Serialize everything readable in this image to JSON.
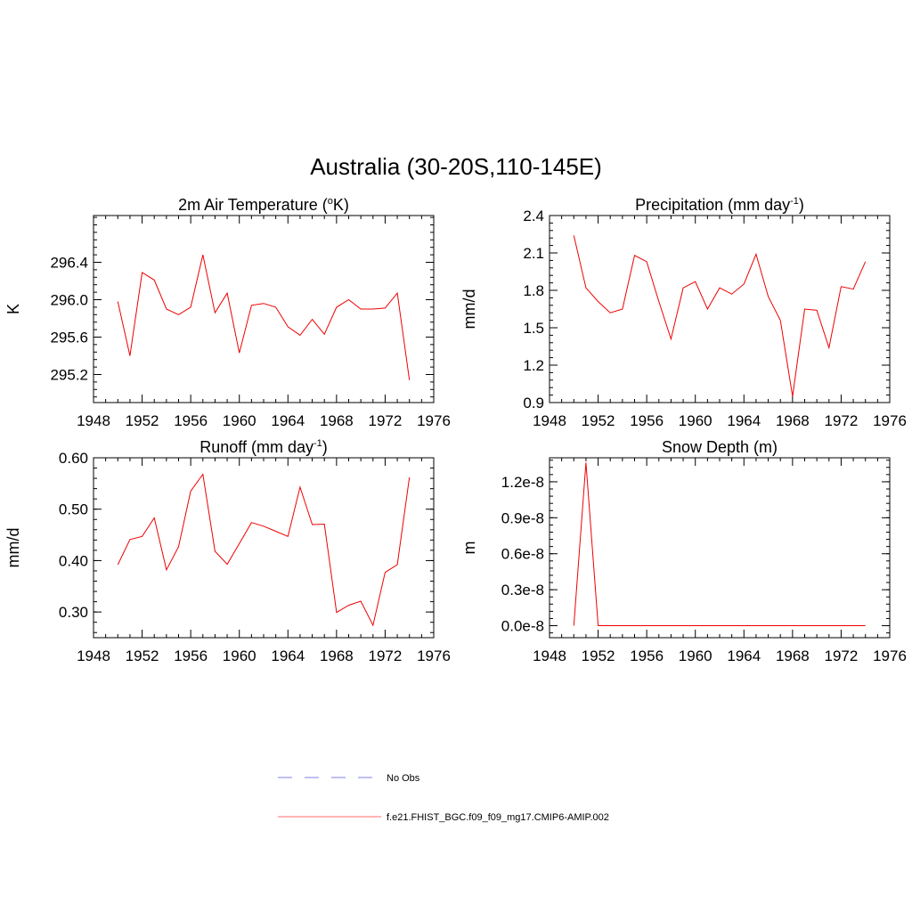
{
  "figure": {
    "title": "Australia (30-20S,110-145E)",
    "legend": [
      {
        "label": "No Obs",
        "color": "#9999ee",
        "dash": true
      },
      {
        "label": "f.e21.FHIST_BGC.f09_f09_mg17.CMIP6-AMIP.002",
        "color": "#ff8888",
        "dash": false
      }
    ]
  },
  "chart_data": [
    {
      "type": "line",
      "title_parts": [
        "2m Air Temperature (",
        "o",
        "K)"
      ],
      "title_style": "sup",
      "ylabel": "K",
      "xlim": [
        1948,
        1976
      ],
      "ylim": [
        294.9,
        296.9
      ],
      "xticks": [
        1948,
        1952,
        1956,
        1960,
        1964,
        1968,
        1972,
        1976
      ],
      "xtick_labels": [
        "1948",
        "1952",
        "1956",
        "1960",
        "1964",
        "1968",
        "1972",
        "1976"
      ],
      "yticks": [
        295.2,
        295.6,
        296.0,
        296.4
      ],
      "ytick_labels": [
        "295.2",
        "295.6",
        "296.0",
        "296.4"
      ],
      "x": [
        1950,
        1951,
        1952,
        1953,
        1954,
        1955,
        1956,
        1957,
        1958,
        1959,
        1960,
        1961,
        1962,
        1963,
        1964,
        1965,
        1966,
        1967,
        1968,
        1969,
        1970,
        1971,
        1972,
        1973,
        1974
      ],
      "series": [
        {
          "name": "f.e21.FHIST_BGC.f09_f09_mg17.CMIP6-AMIP.002",
          "color": "#ee0000",
          "values": [
            295.98,
            295.4,
            296.29,
            296.21,
            295.9,
            295.84,
            295.92,
            296.48,
            295.86,
            296.07,
            295.43,
            295.94,
            295.96,
            295.92,
            295.71,
            295.62,
            295.79,
            295.63,
            295.92,
            296.0,
            295.9,
            295.9,
            295.91,
            296.07,
            295.14
          ]
        }
      ]
    },
    {
      "type": "line",
      "title_parts": [
        "Precipitation (mm day",
        "-1",
        ")"
      ],
      "title_style": "sup",
      "ylabel": "mm/d",
      "xlim": [
        1948,
        1976
      ],
      "ylim": [
        0.9,
        2.4
      ],
      "xticks": [
        1948,
        1952,
        1956,
        1960,
        1964,
        1968,
        1972,
        1976
      ],
      "xtick_labels": [
        "1948",
        "1952",
        "1956",
        "1960",
        "1964",
        "1968",
        "1972",
        "1976"
      ],
      "yticks": [
        0.9,
        1.2,
        1.5,
        1.8,
        2.1,
        2.4
      ],
      "ytick_labels": [
        "0.9",
        "1.2",
        "1.5",
        "1.8",
        "2.1",
        "2.4"
      ],
      "x": [
        1950,
        1951,
        1952,
        1953,
        1954,
        1955,
        1956,
        1957,
        1958,
        1959,
        1960,
        1961,
        1962,
        1963,
        1964,
        1965,
        1966,
        1967,
        1968,
        1969,
        1970,
        1971,
        1972,
        1973,
        1974
      ],
      "series": [
        {
          "name": "f.e21.FHIST_BGC.f09_f09_mg17.CMIP6-AMIP.002",
          "color": "#ee0000",
          "values": [
            2.24,
            1.82,
            1.71,
            1.62,
            1.65,
            2.08,
            2.03,
            1.71,
            1.41,
            1.82,
            1.87,
            1.65,
            1.82,
            1.77,
            1.85,
            2.09,
            1.75,
            1.56,
            0.95,
            1.65,
            1.64,
            1.34,
            1.83,
            1.81,
            2.03
          ]
        }
      ]
    },
    {
      "type": "line",
      "title_parts": [
        "Runoff (mm day",
        "-1",
        ")"
      ],
      "title_style": "sup",
      "ylabel": "mm/d",
      "xlim": [
        1948,
        1976
      ],
      "ylim": [
        0.25,
        0.6
      ],
      "xticks": [
        1948,
        1952,
        1956,
        1960,
        1964,
        1968,
        1972,
        1976
      ],
      "xtick_labels": [
        "1948",
        "1952",
        "1956",
        "1960",
        "1964",
        "1968",
        "1972",
        "1976"
      ],
      "yticks": [
        0.3,
        0.4,
        0.5,
        0.6
      ],
      "ytick_labels": [
        "0.30",
        "0.40",
        "0.50",
        "0.60"
      ],
      "x": [
        1950,
        1951,
        1952,
        1953,
        1954,
        1955,
        1956,
        1957,
        1958,
        1959,
        1960,
        1961,
        1962,
        1963,
        1964,
        1965,
        1966,
        1967,
        1968,
        1969,
        1970,
        1971,
        1972,
        1973,
        1974
      ],
      "series": [
        {
          "name": "f.e21.FHIST_BGC.f09_f09_mg17.CMIP6-AMIP.002",
          "color": "#ee0000",
          "values": [
            0.392,
            0.441,
            0.447,
            0.483,
            0.382,
            0.427,
            0.535,
            0.568,
            0.418,
            0.393,
            0.433,
            0.474,
            0.467,
            0.457,
            0.447,
            0.543,
            0.47,
            0.471,
            0.299,
            0.313,
            0.321,
            0.274,
            0.377,
            0.392,
            0.562
          ]
        }
      ]
    },
    {
      "type": "line",
      "title_parts": [
        "Snow Depth (m)"
      ],
      "title_style": "plain",
      "ylabel": "m",
      "xlim": [
        1948,
        1976
      ],
      "ylim": [
        -1e-09,
        1.4e-08
      ],
      "xticks": [
        1948,
        1952,
        1956,
        1960,
        1964,
        1968,
        1972,
        1976
      ],
      "xtick_labels": [
        "1948",
        "1952",
        "1956",
        "1960",
        "1964",
        "1968",
        "1972",
        "1976"
      ],
      "yticks": [
        0,
        3e-09,
        6e-09,
        9e-09,
        1.2e-08
      ],
      "ytick_labels": [
        "0.0e-8",
        "0.3e-8",
        "0.6e-8",
        "0.9e-8",
        "1.2e-8"
      ],
      "x": [
        1950,
        1951,
        1952,
        1953,
        1954,
        1955,
        1956,
        1957,
        1958,
        1959,
        1960,
        1961,
        1962,
        1963,
        1964,
        1965,
        1966,
        1967,
        1968,
        1969,
        1970,
        1971,
        1972,
        1973,
        1974
      ],
      "series": [
        {
          "name": "f.e21.FHIST_BGC.f09_f09_mg17.CMIP6-AMIP.002",
          "color": "#ee0000",
          "values": [
            0,
            1.36e-08,
            0,
            0,
            0,
            0,
            0,
            0,
            0,
            0,
            0,
            0,
            0,
            0,
            0,
            0,
            0,
            0,
            0,
            0,
            0,
            0,
            0,
            0,
            0
          ]
        }
      ]
    }
  ]
}
